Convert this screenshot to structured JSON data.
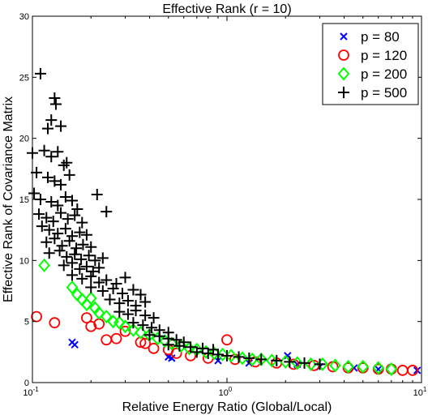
{
  "chart_data": {
    "type": "scatter",
    "title": "Effective Rank (r = 10)",
    "xlabel": "Relative Energy Ratio (Global/Local)",
    "ylabel": "Effective Rank of Covariance Matrix",
    "xscale": "log",
    "xlim": [
      0.1,
      10
    ],
    "ylim": [
      0,
      30
    ],
    "x_ticks": [
      {
        "value": 0.1,
        "base": "10",
        "exp": "-1"
      },
      {
        "value": 1,
        "base": "10",
        "exp": "0"
      },
      {
        "value": 10,
        "base": "10",
        "exp": "1"
      }
    ],
    "y_ticks": [
      "0",
      "5",
      "10",
      "15",
      "20",
      "25",
      "30"
    ],
    "grid": false,
    "legend_position": "top-right",
    "series": [
      {
        "name": "p = 80",
        "marker": "x",
        "color": "#0000ff",
        "points": [
          {
            "x": 0.16,
            "y": 3.3
          },
          {
            "x": 0.165,
            "y": 3.1
          },
          {
            "x": 0.5,
            "y": 2.1
          },
          {
            "x": 0.52,
            "y": 2.0
          },
          {
            "x": 0.9,
            "y": 1.8
          },
          {
            "x": 1.3,
            "y": 1.6
          },
          {
            "x": 2.05,
            "y": 2.2
          },
          {
            "x": 2.3,
            "y": 1.5
          },
          {
            "x": 3.0,
            "y": 1.3
          },
          {
            "x": 4.5,
            "y": 1.2
          },
          {
            "x": 6.0,
            "y": 1.1
          },
          {
            "x": 9.5,
            "y": 1.0
          }
        ]
      },
      {
        "name": "p = 120",
        "marker": "o",
        "color": "#ff0000",
        "points": [
          {
            "x": 0.105,
            "y": 5.4
          },
          {
            "x": 0.13,
            "y": 4.9
          },
          {
            "x": 0.19,
            "y": 5.3
          },
          {
            "x": 0.2,
            "y": 4.6
          },
          {
            "x": 0.22,
            "y": 4.8
          },
          {
            "x": 0.24,
            "y": 3.5
          },
          {
            "x": 0.27,
            "y": 3.6
          },
          {
            "x": 0.3,
            "y": 4.2
          },
          {
            "x": 0.36,
            "y": 3.3
          },
          {
            "x": 0.38,
            "y": 3.2
          },
          {
            "x": 0.42,
            "y": 2.8
          },
          {
            "x": 0.5,
            "y": 2.7
          },
          {
            "x": 0.55,
            "y": 2.4
          },
          {
            "x": 0.65,
            "y": 2.2
          },
          {
            "x": 0.8,
            "y": 2.0
          },
          {
            "x": 1.0,
            "y": 3.5
          },
          {
            "x": 1.1,
            "y": 1.9
          },
          {
            "x": 1.4,
            "y": 1.7
          },
          {
            "x": 1.8,
            "y": 1.6
          },
          {
            "x": 2.2,
            "y": 1.5
          },
          {
            "x": 2.8,
            "y": 1.4
          },
          {
            "x": 3.5,
            "y": 1.3
          },
          {
            "x": 4.2,
            "y": 1.2
          },
          {
            "x": 5.0,
            "y": 1.2
          },
          {
            "x": 6.0,
            "y": 1.1
          },
          {
            "x": 7.0,
            "y": 1.1
          },
          {
            "x": 8.0,
            "y": 1.0
          },
          {
            "x": 9.0,
            "y": 1.0
          }
        ]
      },
      {
        "name": "p = 200",
        "marker": "diamond",
        "color": "#00ff00",
        "points": [
          {
            "x": 0.115,
            "y": 9.6
          },
          {
            "x": 0.16,
            "y": 7.8
          },
          {
            "x": 0.17,
            "y": 7.2
          },
          {
            "x": 0.18,
            "y": 6.8
          },
          {
            "x": 0.19,
            "y": 6.4
          },
          {
            "x": 0.2,
            "y": 6.9
          },
          {
            "x": 0.21,
            "y": 6.1
          },
          {
            "x": 0.22,
            "y": 5.7
          },
          {
            "x": 0.24,
            "y": 5.4
          },
          {
            "x": 0.26,
            "y": 5.0
          },
          {
            "x": 0.28,
            "y": 4.9
          },
          {
            "x": 0.3,
            "y": 4.6
          },
          {
            "x": 0.33,
            "y": 4.3
          },
          {
            "x": 0.36,
            "y": 4.1
          },
          {
            "x": 0.4,
            "y": 3.9
          },
          {
            "x": 0.44,
            "y": 3.6
          },
          {
            "x": 0.48,
            "y": 3.4
          },
          {
            "x": 0.52,
            "y": 3.2
          },
          {
            "x": 0.58,
            "y": 3.0
          },
          {
            "x": 0.64,
            "y": 2.8
          },
          {
            "x": 0.7,
            "y": 2.7
          },
          {
            "x": 0.78,
            "y": 2.5
          },
          {
            "x": 0.86,
            "y": 2.4
          },
          {
            "x": 0.95,
            "y": 2.3
          },
          {
            "x": 1.05,
            "y": 2.2
          },
          {
            "x": 1.2,
            "y": 2.0
          },
          {
            "x": 1.35,
            "y": 1.9
          },
          {
            "x": 1.5,
            "y": 1.9
          },
          {
            "x": 1.7,
            "y": 1.8
          },
          {
            "x": 2.0,
            "y": 1.7
          },
          {
            "x": 2.3,
            "y": 1.6
          },
          {
            "x": 2.7,
            "y": 1.5
          },
          {
            "x": 3.1,
            "y": 1.5
          },
          {
            "x": 3.6,
            "y": 1.4
          },
          {
            "x": 4.2,
            "y": 1.3
          },
          {
            "x": 5.0,
            "y": 1.3
          },
          {
            "x": 6.0,
            "y": 1.2
          },
          {
            "x": 7.0,
            "y": 1.1
          }
        ]
      },
      {
        "name": "p = 500",
        "marker": "+",
        "color": "#000000",
        "points": [
          {
            "x": 0.11,
            "y": 25.3
          },
          {
            "x": 0.13,
            "y": 23.3
          },
          {
            "x": 0.132,
            "y": 22.8
          },
          {
            "x": 0.125,
            "y": 21.5
          },
          {
            "x": 0.12,
            "y": 20.8
          },
          {
            "x": 0.14,
            "y": 21.0
          },
          {
            "x": 0.1,
            "y": 18.8
          },
          {
            "x": 0.115,
            "y": 19.0
          },
          {
            "x": 0.125,
            "y": 18.5
          },
          {
            "x": 0.135,
            "y": 18.9
          },
          {
            "x": 0.145,
            "y": 17.8
          },
          {
            "x": 0.15,
            "y": 18.0
          },
          {
            "x": 0.105,
            "y": 17.2
          },
          {
            "x": 0.12,
            "y": 16.8
          },
          {
            "x": 0.13,
            "y": 16.5
          },
          {
            "x": 0.14,
            "y": 16.2
          },
          {
            "x": 0.155,
            "y": 17.0
          },
          {
            "x": 0.102,
            "y": 15.5
          },
          {
            "x": 0.11,
            "y": 15.0
          },
          {
            "x": 0.125,
            "y": 14.8
          },
          {
            "x": 0.135,
            "y": 14.5
          },
          {
            "x": 0.148,
            "y": 15.2
          },
          {
            "x": 0.16,
            "y": 14.9
          },
          {
            "x": 0.17,
            "y": 14.2
          },
          {
            "x": 0.215,
            "y": 15.4
          },
          {
            "x": 0.108,
            "y": 13.8
          },
          {
            "x": 0.118,
            "y": 13.5
          },
          {
            "x": 0.128,
            "y": 13.2
          },
          {
            "x": 0.14,
            "y": 13.9
          },
          {
            "x": 0.152,
            "y": 13.4
          },
          {
            "x": 0.165,
            "y": 13.7
          },
          {
            "x": 0.18,
            "y": 13.1
          },
          {
            "x": 0.24,
            "y": 14.0
          },
          {
            "x": 0.112,
            "y": 12.8
          },
          {
            "x": 0.122,
            "y": 12.5
          },
          {
            "x": 0.135,
            "y": 12.2
          },
          {
            "x": 0.148,
            "y": 12.6
          },
          {
            "x": 0.16,
            "y": 12.0
          },
          {
            "x": 0.175,
            "y": 12.3
          },
          {
            "x": 0.19,
            "y": 12.1
          },
          {
            "x": 0.118,
            "y": 11.5
          },
          {
            "x": 0.13,
            "y": 11.8
          },
          {
            "x": 0.142,
            "y": 11.2
          },
          {
            "x": 0.155,
            "y": 11.6
          },
          {
            "x": 0.168,
            "y": 11.0
          },
          {
            "x": 0.182,
            "y": 11.3
          },
          {
            "x": 0.2,
            "y": 11.1
          },
          {
            "x": 0.122,
            "y": 10.6
          },
          {
            "x": 0.138,
            "y": 10.8
          },
          {
            "x": 0.15,
            "y": 10.3
          },
          {
            "x": 0.165,
            "y": 10.5
          },
          {
            "x": 0.178,
            "y": 10.1
          },
          {
            "x": 0.195,
            "y": 10.4
          },
          {
            "x": 0.21,
            "y": 10.0
          },
          {
            "x": 0.23,
            "y": 10.2
          },
          {
            "x": 0.145,
            "y": 9.6
          },
          {
            "x": 0.16,
            "y": 9.8
          },
          {
            "x": 0.175,
            "y": 9.3
          },
          {
            "x": 0.19,
            "y": 9.5
          },
          {
            "x": 0.205,
            "y": 9.1
          },
          {
            "x": 0.22,
            "y": 9.4
          },
          {
            "x": 0.16,
            "y": 8.8
          },
          {
            "x": 0.18,
            "y": 8.5
          },
          {
            "x": 0.2,
            "y": 8.7
          },
          {
            "x": 0.22,
            "y": 8.2
          },
          {
            "x": 0.24,
            "y": 8.4
          },
          {
            "x": 0.27,
            "y": 8.1
          },
          {
            "x": 0.3,
            "y": 8.6
          },
          {
            "x": 0.2,
            "y": 7.8
          },
          {
            "x": 0.23,
            "y": 7.5
          },
          {
            "x": 0.26,
            "y": 7.7
          },
          {
            "x": 0.29,
            "y": 7.3
          },
          {
            "x": 0.33,
            "y": 7.6
          },
          {
            "x": 0.36,
            "y": 7.2
          },
          {
            "x": 0.25,
            "y": 6.8
          },
          {
            "x": 0.28,
            "y": 6.5
          },
          {
            "x": 0.31,
            "y": 6.7
          },
          {
            "x": 0.34,
            "y": 6.3
          },
          {
            "x": 0.38,
            "y": 6.6
          },
          {
            "x": 0.28,
            "y": 5.8
          },
          {
            "x": 0.31,
            "y": 5.6
          },
          {
            "x": 0.34,
            "y": 5.9
          },
          {
            "x": 0.38,
            "y": 5.5
          },
          {
            "x": 0.42,
            "y": 5.3
          },
          {
            "x": 0.33,
            "y": 4.9
          },
          {
            "x": 0.37,
            "y": 4.7
          },
          {
            "x": 0.41,
            "y": 4.5
          },
          {
            "x": 0.45,
            "y": 4.3
          },
          {
            "x": 0.5,
            "y": 4.1
          },
          {
            "x": 0.4,
            "y": 3.9
          },
          {
            "x": 0.45,
            "y": 3.8
          },
          {
            "x": 0.5,
            "y": 3.6
          },
          {
            "x": 0.55,
            "y": 3.5
          },
          {
            "x": 0.6,
            "y": 3.3
          },
          {
            "x": 0.5,
            "y": 3.1
          },
          {
            "x": 0.57,
            "y": 3.0
          },
          {
            "x": 0.65,
            "y": 2.9
          },
          {
            "x": 0.75,
            "y": 2.8
          },
          {
            "x": 0.85,
            "y": 2.7
          },
          {
            "x": 0.7,
            "y": 2.5
          },
          {
            "x": 0.8,
            "y": 2.4
          },
          {
            "x": 0.9,
            "y": 2.3
          },
          {
            "x": 1.0,
            "y": 2.2
          },
          {
            "x": 1.15,
            "y": 2.1
          },
          {
            "x": 1.3,
            "y": 2.0
          },
          {
            "x": 1.5,
            "y": 1.9
          },
          {
            "x": 1.8,
            "y": 1.8
          },
          {
            "x": 2.1,
            "y": 1.7
          },
          {
            "x": 2.5,
            "y": 1.6
          },
          {
            "x": 3.0,
            "y": 1.5
          }
        ]
      }
    ]
  }
}
